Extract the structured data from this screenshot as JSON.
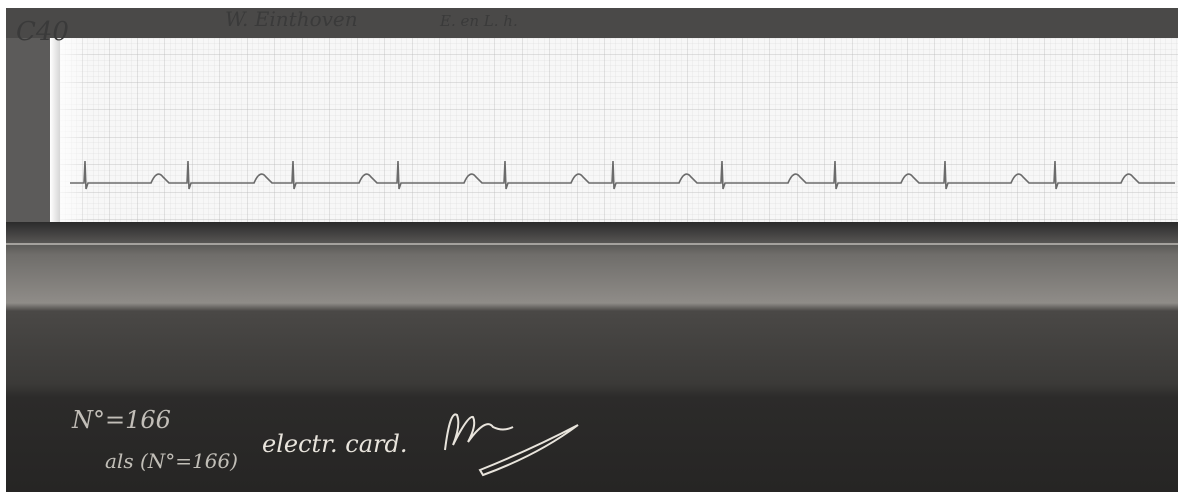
{
  "plate": {
    "id_mark": "C40",
    "header_signature": "W. Einthoven",
    "header_note": "E. en L. h.",
    "number_note": "N°=166",
    "alias_note": "als (N°=166)",
    "caption": "electr. card."
  }
}
